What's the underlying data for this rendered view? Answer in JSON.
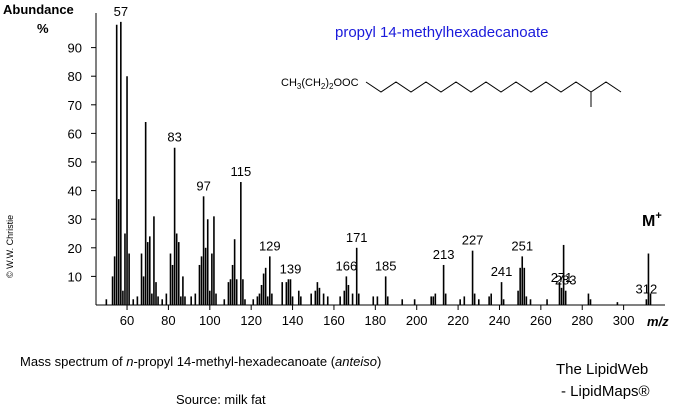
{
  "chart_data": {
    "type": "stem",
    "title": "propyl 14-methylhexadecanoate",
    "y_label": "Abundance",
    "y_unit": "%",
    "x_label": "m/z",
    "molecular_ion": [
      "M",
      "+"
    ],
    "structure_formula": [
      "CH",
      "3",
      "(CH",
      "2",
      ")",
      "2",
      "OOC"
    ],
    "caption": [
      "Mass spectrum of ",
      "n",
      "-propyl 14-methyl-hexadecanoate  (",
      "anteiso",
      ")"
    ],
    "source": "Source: milk fat",
    "credit": [
      "The LipidWeb",
      "- LipidMaps®"
    ],
    "copyright": "© W.W. Christie",
    "color": "#000000",
    "xlim": [
      45,
      320
    ],
    "ylim": [
      0,
      100
    ],
    "xticks": [
      60,
      80,
      100,
      120,
      140,
      160,
      180,
      200,
      220,
      240,
      260,
      280,
      300
    ],
    "yticks": [
      10,
      20,
      30,
      40,
      50,
      60,
      70,
      80,
      90
    ],
    "x": [
      50,
      53,
      54,
      55,
      56,
      57,
      58,
      59,
      60,
      61,
      63,
      65,
      67,
      68,
      69,
      70,
      71,
      72,
      73,
      74,
      75,
      77,
      79,
      81,
      82,
      83,
      84,
      85,
      86,
      87,
      88,
      91,
      93,
      95,
      96,
      97,
      98,
      99,
      100,
      101,
      102,
      103,
      107,
      109,
      110,
      111,
      112,
      113,
      115,
      116,
      117,
      121,
      123,
      124,
      125,
      126,
      127,
      128,
      129,
      130,
      135,
      137,
      138,
      139,
      140,
      143,
      144,
      149,
      151,
      152,
      153,
      155,
      157,
      163,
      165,
      166,
      167,
      169,
      171,
      172,
      179,
      181,
      185,
      186,
      193,
      199,
      207,
      208,
      209,
      213,
      214,
      221,
      223,
      227,
      228,
      230,
      235,
      236,
      241,
      242,
      249,
      250,
      251,
      252,
      253,
      255,
      263,
      269,
      270,
      271,
      272,
      283,
      284,
      297,
      311,
      312,
      313
    ],
    "values": [
      2,
      10,
      17,
      98,
      37,
      99,
      5,
      25,
      80,
      18,
      2,
      3,
      18,
      10,
      64,
      22,
      24,
      4,
      31,
      8,
      3,
      2,
      4,
      18,
      14,
      55,
      25,
      22,
      3,
      10,
      3,
      3,
      4,
      14,
      17,
      38,
      20,
      30,
      5,
      18,
      31,
      4,
      2,
      8,
      9,
      14,
      23,
      9,
      43,
      9,
      2,
      2,
      3,
      4,
      7,
      11,
      13,
      3,
      17,
      4,
      8,
      8,
      9,
      9,
      3,
      5,
      3,
      4,
      5,
      8,
      6,
      4,
      3,
      3,
      5,
      10,
      7,
      4,
      20,
      4,
      3,
      3,
      10,
      3,
      2,
      2,
      3,
      3,
      4,
      14,
      4,
      2,
      3,
      19,
      4,
      2,
      3,
      4,
      8,
      2,
      5,
      13,
      17,
      13,
      3,
      2,
      2,
      8,
      6,
      21,
      5,
      4,
      2,
      1,
      2,
      18,
      4
    ],
    "peak_labels": [
      null,
      null,
      null,
      null,
      null,
      "57",
      null,
      null,
      null,
      null,
      null,
      null,
      null,
      null,
      null,
      null,
      null,
      null,
      null,
      null,
      null,
      null,
      null,
      null,
      null,
      "83",
      null,
      null,
      null,
      null,
      null,
      null,
      null,
      null,
      null,
      "97",
      null,
      null,
      null,
      null,
      null,
      null,
      null,
      null,
      null,
      null,
      null,
      null,
      "115",
      null,
      null,
      null,
      null,
      null,
      null,
      null,
      null,
      null,
      "129",
      null,
      null,
      null,
      null,
      "139",
      null,
      null,
      null,
      null,
      null,
      null,
      null,
      null,
      null,
      null,
      null,
      "166",
      null,
      null,
      "171",
      null,
      null,
      null,
      "185",
      null,
      null,
      null,
      null,
      null,
      null,
      "213",
      null,
      null,
      null,
      "227",
      null,
      null,
      null,
      null,
      "241",
      null,
      null,
      null,
      "251",
      null,
      null,
      null,
      null,
      null,
      "271",
      null,
      "283",
      null,
      null,
      null,
      "312",
      null
    ]
  }
}
